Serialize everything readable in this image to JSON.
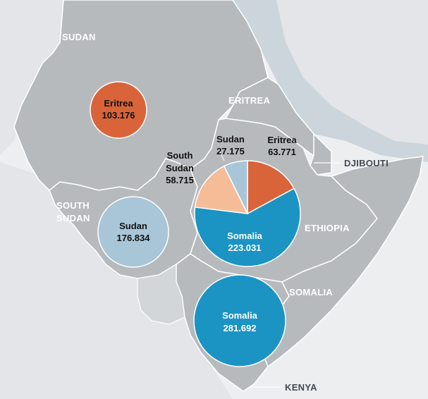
{
  "colors": {
    "sea": "#eceef0",
    "land_outside": "#dfe2e5",
    "land_region": "#b7babd",
    "land_highlight": "#a9adb1",
    "border": "#ffffff",
    "orange": "#d9643a",
    "light_blue": "#a9c6d9",
    "teal": "#1b94c4",
    "peach": "#f4bd98",
    "pie_lightblue": "#a9c6d9"
  },
  "country_labels": {
    "sudan": "SUDAN",
    "eritrea": "ERITREA",
    "djibouti": "DJIBOUTI",
    "south_sudan_line1": "SOUTH",
    "south_sudan_line2": "SUDAN",
    "ethiopia": "ETHIOPIA",
    "somalia": "SOMALIA",
    "kenya": "KENYA"
  },
  "bubbles": {
    "sudan_hosts": {
      "origin": "Eritrea",
      "value": "103.176",
      "amount": 103.176
    },
    "south_sudan_hosts": {
      "origin": "Sudan",
      "value": "176.834",
      "amount": 176.834
    },
    "kenya_hosts": {
      "origin": "Somalia",
      "value": "281.692",
      "amount": 281.692
    }
  },
  "ethiopia_pie": {
    "slices": [
      {
        "origin": "Eritrea",
        "value": "63.771",
        "amount": 63.771,
        "color": "#d9643a"
      },
      {
        "origin": "Somalia",
        "value": "223.031",
        "amount": 223.031,
        "color": "#1b94c4"
      },
      {
        "origin_line1": "South",
        "origin_line2": "Sudan",
        "value": "58.715",
        "amount": 58.715,
        "color": "#f4bd98"
      },
      {
        "origin": "Sudan",
        "value": "27.175",
        "amount": 27.175,
        "color": "#a9c6d9"
      }
    ]
  }
}
